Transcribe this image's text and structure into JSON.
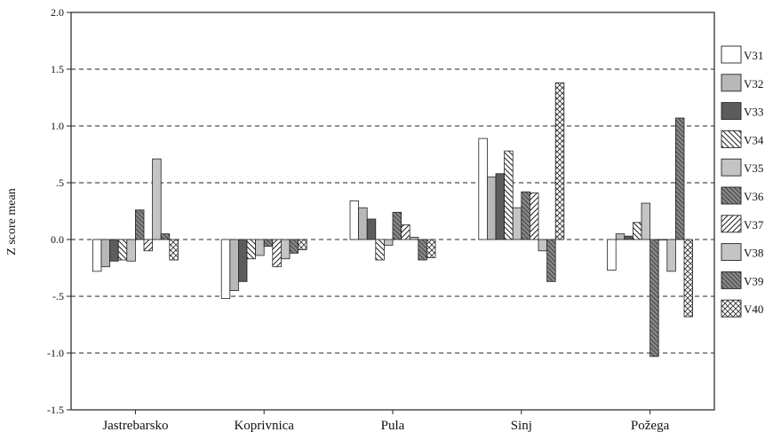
{
  "chart_data": {
    "type": "bar",
    "title": "",
    "xlabel": "",
    "ylabel": "Z score mean",
    "ylim": [
      -1.5,
      2.0
    ],
    "yticks": [
      {
        "value": 2.0,
        "label": "2.0"
      },
      {
        "value": 1.5,
        "label": "1.5"
      },
      {
        "value": 1.0,
        "label": "1.0"
      },
      {
        "value": 0.5,
        "label": ".5"
      },
      {
        "value": 0.0,
        "label": "0.0"
      },
      {
        "value": -0.5,
        "label": "-.5"
      },
      {
        "value": -1.0,
        "label": "-1.0"
      },
      {
        "value": -1.5,
        "label": "-1.5"
      }
    ],
    "grid": "horizontal-dashed",
    "legend": "right",
    "categories": [
      "Jastrebarsko",
      "Koprivnica",
      "Pula",
      "Sinj",
      "Požega"
    ],
    "series": [
      {
        "name": "V31",
        "pattern": "white",
        "values": [
          -0.28,
          -0.52,
          0.34,
          0.89,
          -0.27
        ]
      },
      {
        "name": "V32",
        "pattern": "lightgray",
        "values": [
          -0.24,
          -0.45,
          0.28,
          0.55,
          0.05
        ]
      },
      {
        "name": "V33",
        "pattern": "darkgray",
        "values": [
          -0.19,
          -0.37,
          0.18,
          0.58,
          0.03
        ]
      },
      {
        "name": "V34",
        "pattern": "hatch-back",
        "values": [
          -0.18,
          -0.17,
          -0.18,
          0.78,
          0.15
        ]
      },
      {
        "name": "V35",
        "pattern": "gray",
        "values": [
          -0.19,
          -0.14,
          -0.05,
          0.28,
          0.32
        ]
      },
      {
        "name": "V36",
        "pattern": "hatch-dark",
        "values": [
          0.26,
          -0.06,
          0.24,
          0.42,
          -1.03
        ]
      },
      {
        "name": "V37",
        "pattern": "hatch-fwd",
        "values": [
          -0.1,
          -0.24,
          0.13,
          0.41,
          0.0
        ]
      },
      {
        "name": "V38",
        "pattern": "gray",
        "values": [
          0.71,
          -0.17,
          0.02,
          -0.1,
          -0.28
        ]
      },
      {
        "name": "V39",
        "pattern": "hatch-dark",
        "values": [
          0.05,
          -0.12,
          -0.18,
          -0.37,
          1.07
        ]
      },
      {
        "name": "V40",
        "pattern": "checker",
        "values": [
          -0.18,
          -0.09,
          -0.16,
          1.38,
          -0.68
        ]
      }
    ]
  }
}
